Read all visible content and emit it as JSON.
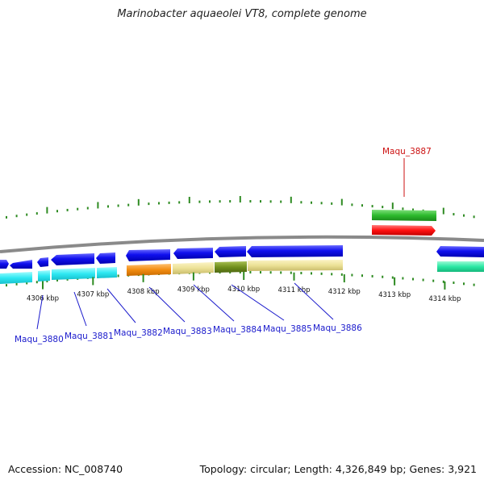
{
  "title": "Marinobacter aquaeolei VT8, complete genome",
  "footer": {
    "accession": "Accession: NC_008740",
    "summary": "Topology: circular; Length: 4,326,849 bp; Genes: 3,921"
  },
  "colors": {
    "label_blue": "#1a1acc",
    "label_red": "#cc1111",
    "tick": "#2e8b22",
    "backbone": "#8a8a8a"
  },
  "axis": {
    "unit_suffix": " kbp",
    "ticks": [
      {
        "kbp": 4306,
        "label": "4306 kbp"
      },
      {
        "kbp": 4307,
        "label": "4307 kbp"
      },
      {
        "kbp": 4308,
        "label": "4308 kbp"
      },
      {
        "kbp": 4309,
        "label": "4309 kbp"
      },
      {
        "kbp": 4310,
        "label": "4310 kbp"
      },
      {
        "kbp": 4311,
        "label": "4311 kbp"
      },
      {
        "kbp": 4312,
        "label": "4312 kbp"
      },
      {
        "kbp": 4313,
        "label": "4313 kbp"
      },
      {
        "kbp": 4314,
        "label": "4314 kbp"
      }
    ]
  },
  "gene_labels": [
    {
      "name": "Maqu_3880",
      "color": "blue"
    },
    {
      "name": "Maqu_3881",
      "color": "blue"
    },
    {
      "name": "Maqu_3882",
      "color": "blue"
    },
    {
      "name": "Maqu_3883",
      "color": "blue"
    },
    {
      "name": "Maqu_3884",
      "color": "blue"
    },
    {
      "name": "Maqu_3885",
      "color": "blue"
    },
    {
      "name": "Maqu_3886",
      "color": "blue"
    },
    {
      "name": "Maqu_3887",
      "color": "red"
    }
  ]
}
